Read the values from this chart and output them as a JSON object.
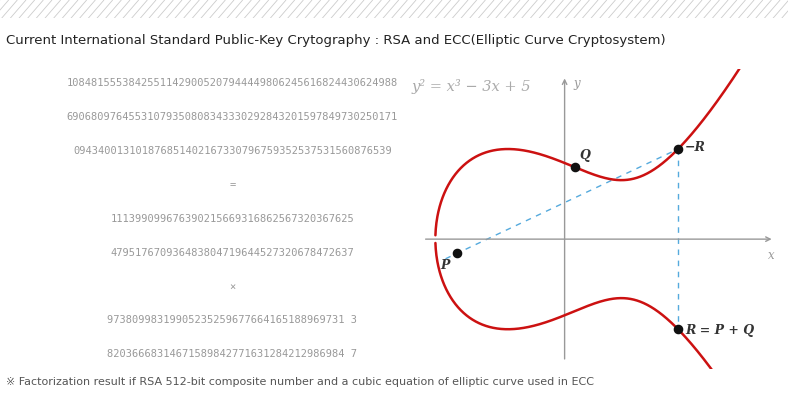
{
  "title": "Current International Standard Public-Key Crytography : RSA and ECC(Elliptic Curve Cryptosystem)",
  "title_fontsize": 9.5,
  "bg_color": "#f0ece3",
  "white_bg": "#ffffff",
  "footnote": "※ Factorization result if RSA 512-bit composite number and a cubic equation of elliptic curve used in ECC",
  "footnote_fontsize": 8.0,
  "rsa_lines": [
    "10848155538425511429005207944449806245616824430624988",
    "69068097645531079350808343330292843201597849730250171",
    "09434001310187685140216733079675935253753156087 6539",
    "=",
    "111399099676390215669316862567320367625",
    "479517670936483804719644527320678472637",
    "×",
    "97380998319905235259677664165188969731 3",
    "82036668314671589842771631284212986984 7"
  ],
  "rsa_lines_exact": [
    "10848155538425511429005207944449806245616824430624988",
    "69068097645531079350808343330292843201597849730250171",
    "094340013101876851402167330796759352537531560876539",
    "=",
    "111399099676390215669316862567320367625",
    "479517670936483804719644527320678472637",
    "×",
    "97380998319905235259677664165188969731 3",
    "82036668314671589842771631284212986984 7"
  ],
  "equation": "y² = x³ − 3x + 5",
  "label_P": "P",
  "label_Q": "Q",
  "label_negR": "−R",
  "label_R": "R = P + Q",
  "curve_color": "#cc1111",
  "axis_color": "#999999",
  "dashed_color": "#55aadd",
  "dot_color": "#111111",
  "text_color": "#999999",
  "eq_color": "#aaaaaa",
  "hatch_color": "#cccccc"
}
